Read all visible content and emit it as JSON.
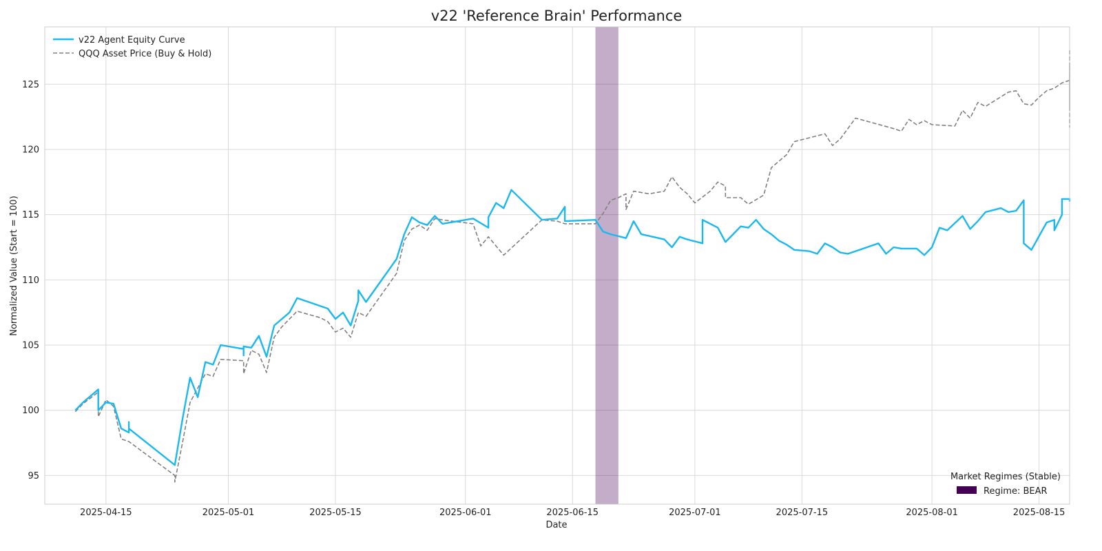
{
  "chart_data": {
    "type": "line",
    "title": "v22 'Reference Brain' Performance",
    "xlabel": "Date",
    "ylabel": "Normalized Value (Start = 100)",
    "xlim": [
      "2025-04-07",
      "2025-08-19"
    ],
    "ylim": [
      92.8,
      129.4
    ],
    "x_ticks": [
      "2025-04-15",
      "2025-05-01",
      "2025-05-15",
      "2025-06-01",
      "2025-06-15",
      "2025-07-01",
      "2025-07-15",
      "2025-08-01",
      "2025-08-15"
    ],
    "y_ticks": [
      95,
      100,
      105,
      110,
      115,
      120,
      125
    ],
    "grid": true,
    "legend": {
      "placement": "top-left"
    },
    "regime_legend": {
      "placement": "bottom-right",
      "title": "Market Regimes (Stable)",
      "label": "Regime: BEAR",
      "color": "#440154"
    },
    "shaded_regions": [
      {
        "label": "Regime: BEAR",
        "start": "2025-06-18",
        "end": "2025-06-21",
        "color": "#440154",
        "opacity": 0.32
      }
    ],
    "series": [
      {
        "name": "v22 Agent Equity Curve",
        "color": "#1ab8f0",
        "style": "solid",
        "points": [
          [
            "2025-04-11",
            100.0
          ],
          [
            "2025-04-12",
            100.6
          ],
          [
            "2025-04-14",
            101.6
          ],
          [
            "2025-04-14",
            100.0
          ],
          [
            "2025-04-15",
            100.6
          ],
          [
            "2025-04-16",
            100.5
          ],
          [
            "2025-04-17",
            98.6
          ],
          [
            "2025-04-18",
            98.3
          ],
          [
            "2025-04-18",
            99.1
          ],
          [
            "2025-04-18",
            98.6
          ],
          [
            "2025-04-24",
            95.8
          ],
          [
            "2025-04-25",
            99.3
          ],
          [
            "2025-04-26",
            102.5
          ],
          [
            "2025-04-27",
            101.0
          ],
          [
            "2025-04-28",
            103.7
          ],
          [
            "2025-04-29",
            103.5
          ],
          [
            "2025-04-30",
            105.0
          ],
          [
            "2025-05-03",
            104.7
          ],
          [
            "2025-05-03",
            104.2
          ],
          [
            "2025-05-03",
            104.9
          ],
          [
            "2025-05-04",
            104.8
          ],
          [
            "2025-05-05",
            105.7
          ],
          [
            "2025-05-06",
            104.1
          ],
          [
            "2025-05-07",
            106.5
          ],
          [
            "2025-05-08",
            107.0
          ],
          [
            "2025-05-09",
            107.5
          ],
          [
            "2025-05-10",
            108.6
          ],
          [
            "2025-05-14",
            107.8
          ],
          [
            "2025-05-15",
            107.0
          ],
          [
            "2025-05-16",
            107.5
          ],
          [
            "2025-05-17",
            106.5
          ],
          [
            "2025-05-18",
            108.4
          ],
          [
            "2025-05-18",
            109.2
          ],
          [
            "2025-05-19",
            108.3
          ],
          [
            "2025-05-23",
            111.6
          ],
          [
            "2025-05-24",
            113.5
          ],
          [
            "2025-05-25",
            114.8
          ],
          [
            "2025-05-26",
            114.4
          ],
          [
            "2025-05-27",
            114.2
          ],
          [
            "2025-05-28",
            114.9
          ],
          [
            "2025-05-29",
            114.3
          ],
          [
            "2025-06-02",
            114.7
          ],
          [
            "2025-06-04",
            114.0
          ],
          [
            "2025-06-04",
            114.8
          ],
          [
            "2025-06-05",
            115.9
          ],
          [
            "2025-06-06",
            115.5
          ],
          [
            "2025-06-07",
            116.9
          ],
          [
            "2025-06-11",
            114.6
          ],
          [
            "2025-06-13",
            114.7
          ],
          [
            "2025-06-14",
            115.6
          ],
          [
            "2025-06-14",
            114.5
          ],
          [
            "2025-06-18",
            114.6
          ],
          [
            "2025-06-19",
            113.7
          ],
          [
            "2025-06-20",
            113.5
          ],
          [
            "2025-06-22",
            113.2
          ],
          [
            "2025-06-23",
            114.5
          ],
          [
            "2025-06-24",
            113.5
          ],
          [
            "2025-06-27",
            113.1
          ],
          [
            "2025-06-28",
            112.5
          ],
          [
            "2025-06-29",
            113.3
          ],
          [
            "2025-06-30",
            113.1
          ],
          [
            "2025-07-02",
            112.8
          ],
          [
            "2025-07-02",
            114.6
          ],
          [
            "2025-07-04",
            114.0
          ],
          [
            "2025-07-05",
            112.9
          ],
          [
            "2025-07-06",
            113.5
          ],
          [
            "2025-07-07",
            114.1
          ],
          [
            "2025-07-08",
            114.0
          ],
          [
            "2025-07-09",
            114.6
          ],
          [
            "2025-07-10",
            113.9
          ],
          [
            "2025-07-11",
            113.5
          ],
          [
            "2025-07-12",
            113.0
          ],
          [
            "2025-07-13",
            112.7
          ],
          [
            "2025-07-14",
            112.3
          ],
          [
            "2025-07-16",
            112.2
          ],
          [
            "2025-07-17",
            112.0
          ],
          [
            "2025-07-18",
            112.8
          ],
          [
            "2025-07-19",
            112.5
          ],
          [
            "2025-07-20",
            112.1
          ],
          [
            "2025-07-21",
            112.0
          ],
          [
            "2025-07-24",
            112.6
          ],
          [
            "2025-07-25",
            112.8
          ],
          [
            "2025-07-26",
            112.0
          ],
          [
            "2025-07-27",
            112.5
          ],
          [
            "2025-07-28",
            112.4
          ],
          [
            "2025-07-30",
            112.4
          ],
          [
            "2025-07-31",
            111.9
          ],
          [
            "2025-08-01",
            112.5
          ],
          [
            "2025-08-02",
            114.0
          ],
          [
            "2025-08-03",
            113.8
          ],
          [
            "2025-08-05",
            114.9
          ],
          [
            "2025-08-06",
            113.9
          ],
          [
            "2025-08-07",
            114.5
          ],
          [
            "2025-08-08",
            115.2
          ],
          [
            "2025-08-10",
            115.5
          ],
          [
            "2025-08-11",
            115.2
          ],
          [
            "2025-08-12",
            115.3
          ],
          [
            "2025-08-13",
            116.1
          ],
          [
            "2025-08-13",
            112.8
          ],
          [
            "2025-08-14",
            112.3
          ],
          [
            "2025-08-16",
            114.4
          ],
          [
            "2025-08-17",
            114.6
          ],
          [
            "2025-08-17",
            113.8
          ],
          [
            "2025-08-18",
            115.0
          ],
          [
            "2025-08-18",
            115.3
          ],
          [
            "2025-08-18",
            116.2
          ],
          [
            "2025-08-19",
            116.2
          ],
          [
            "2025-08-19",
            116.0
          ]
        ]
      },
      {
        "name": "QQQ Asset Price (Buy & Hold)",
        "color": "#808080",
        "style": "dashed",
        "points": [
          [
            "2025-04-11",
            99.9
          ],
          [
            "2025-04-12",
            100.5
          ],
          [
            "2025-04-14",
            101.4
          ],
          [
            "2025-04-14",
            99.5
          ],
          [
            "2025-04-15",
            100.8
          ],
          [
            "2025-04-16",
            100.3
          ],
          [
            "2025-04-17",
            97.8
          ],
          [
            "2025-04-18",
            97.6
          ],
          [
            "2025-04-24",
            95.0
          ],
          [
            "2025-04-24",
            94.5
          ],
          [
            "2025-04-25",
            97.5
          ],
          [
            "2025-04-26",
            100.6
          ],
          [
            "2025-04-28",
            102.8
          ],
          [
            "2025-04-29",
            102.6
          ],
          [
            "2025-04-30",
            103.9
          ],
          [
            "2025-05-03",
            103.8
          ],
          [
            "2025-05-03",
            102.8
          ],
          [
            "2025-05-04",
            104.6
          ],
          [
            "2025-05-05",
            104.3
          ],
          [
            "2025-05-06",
            102.9
          ],
          [
            "2025-05-07",
            105.6
          ],
          [
            "2025-05-08",
            106.4
          ],
          [
            "2025-05-10",
            107.6
          ],
          [
            "2025-05-13",
            107.1
          ],
          [
            "2025-05-14",
            106.8
          ],
          [
            "2025-05-15",
            106.0
          ],
          [
            "2025-05-16",
            106.3
          ],
          [
            "2025-05-17",
            105.6
          ],
          [
            "2025-05-18",
            107.5
          ],
          [
            "2025-05-19",
            107.2
          ],
          [
            "2025-05-23",
            110.5
          ],
          [
            "2025-05-24",
            113.0
          ],
          [
            "2025-05-25",
            113.9
          ],
          [
            "2025-05-26",
            114.2
          ],
          [
            "2025-05-27",
            113.8
          ],
          [
            "2025-05-28",
            114.7
          ],
          [
            "2025-05-29",
            114.6
          ],
          [
            "2025-06-02",
            114.3
          ],
          [
            "2025-06-03",
            112.6
          ],
          [
            "2025-06-04",
            113.3
          ],
          [
            "2025-06-06",
            111.9
          ],
          [
            "2025-06-11",
            114.6
          ],
          [
            "2025-06-13",
            114.5
          ],
          [
            "2025-06-14",
            114.3
          ],
          [
            "2025-06-18",
            114.3
          ],
          [
            "2025-06-19",
            115.1
          ],
          [
            "2025-06-20",
            116.1
          ],
          [
            "2025-06-21",
            116.3
          ],
          [
            "2025-06-22",
            116.6
          ],
          [
            "2025-06-22",
            115.4
          ],
          [
            "2025-06-23",
            116.8
          ],
          [
            "2025-06-25",
            116.6
          ],
          [
            "2025-06-27",
            116.8
          ],
          [
            "2025-06-28",
            117.9
          ],
          [
            "2025-06-29",
            117.1
          ],
          [
            "2025-06-30",
            116.6
          ],
          [
            "2025-07-01",
            115.9
          ],
          [
            "2025-07-03",
            116.8
          ],
          [
            "2025-07-04",
            117.5
          ],
          [
            "2025-07-05",
            117.2
          ],
          [
            "2025-07-05",
            116.3
          ],
          [
            "2025-07-07",
            116.3
          ],
          [
            "2025-07-08",
            115.8
          ],
          [
            "2025-07-10",
            116.5
          ],
          [
            "2025-07-11",
            118.6
          ],
          [
            "2025-07-12",
            119.1
          ],
          [
            "2025-07-13",
            119.6
          ],
          [
            "2025-07-14",
            120.6
          ],
          [
            "2025-07-18",
            121.2
          ],
          [
            "2025-07-19",
            120.3
          ],
          [
            "2025-07-20",
            120.8
          ],
          [
            "2025-07-21",
            121.6
          ],
          [
            "2025-07-22",
            122.4
          ],
          [
            "2025-07-27",
            121.6
          ],
          [
            "2025-07-28",
            121.4
          ],
          [
            "2025-07-29",
            122.3
          ],
          [
            "2025-07-30",
            121.9
          ],
          [
            "2025-07-31",
            122.2
          ],
          [
            "2025-08-01",
            121.9
          ],
          [
            "2025-08-04",
            121.8
          ],
          [
            "2025-08-05",
            123.0
          ],
          [
            "2025-08-06",
            122.4
          ],
          [
            "2025-08-07",
            123.6
          ],
          [
            "2025-08-08",
            123.3
          ],
          [
            "2025-08-11",
            124.4
          ],
          [
            "2025-08-12",
            124.5
          ],
          [
            "2025-08-13",
            123.5
          ],
          [
            "2025-08-14",
            123.4
          ],
          [
            "2025-08-15",
            124.0
          ],
          [
            "2025-08-16",
            124.5
          ],
          [
            "2025-08-17",
            124.7
          ],
          [
            "2025-08-18",
            125.1
          ],
          [
            "2025-08-19",
            125.3
          ],
          [
            "2025-08-19",
            125.8
          ],
          [
            "2025-08-19",
            124.0
          ],
          [
            "2025-08-19",
            121.7
          ],
          [
            "2025-08-19",
            124.1
          ],
          [
            "2025-08-19",
            123.3
          ],
          [
            "2025-08-19",
            125.5
          ],
          [
            "2025-08-19",
            126.4
          ],
          [
            "2025-08-19",
            126.6
          ],
          [
            "2025-08-19",
            126.0
          ],
          [
            "2025-08-19",
            127.6
          ],
          [
            "2025-08-19",
            127.6
          ]
        ]
      }
    ]
  }
}
